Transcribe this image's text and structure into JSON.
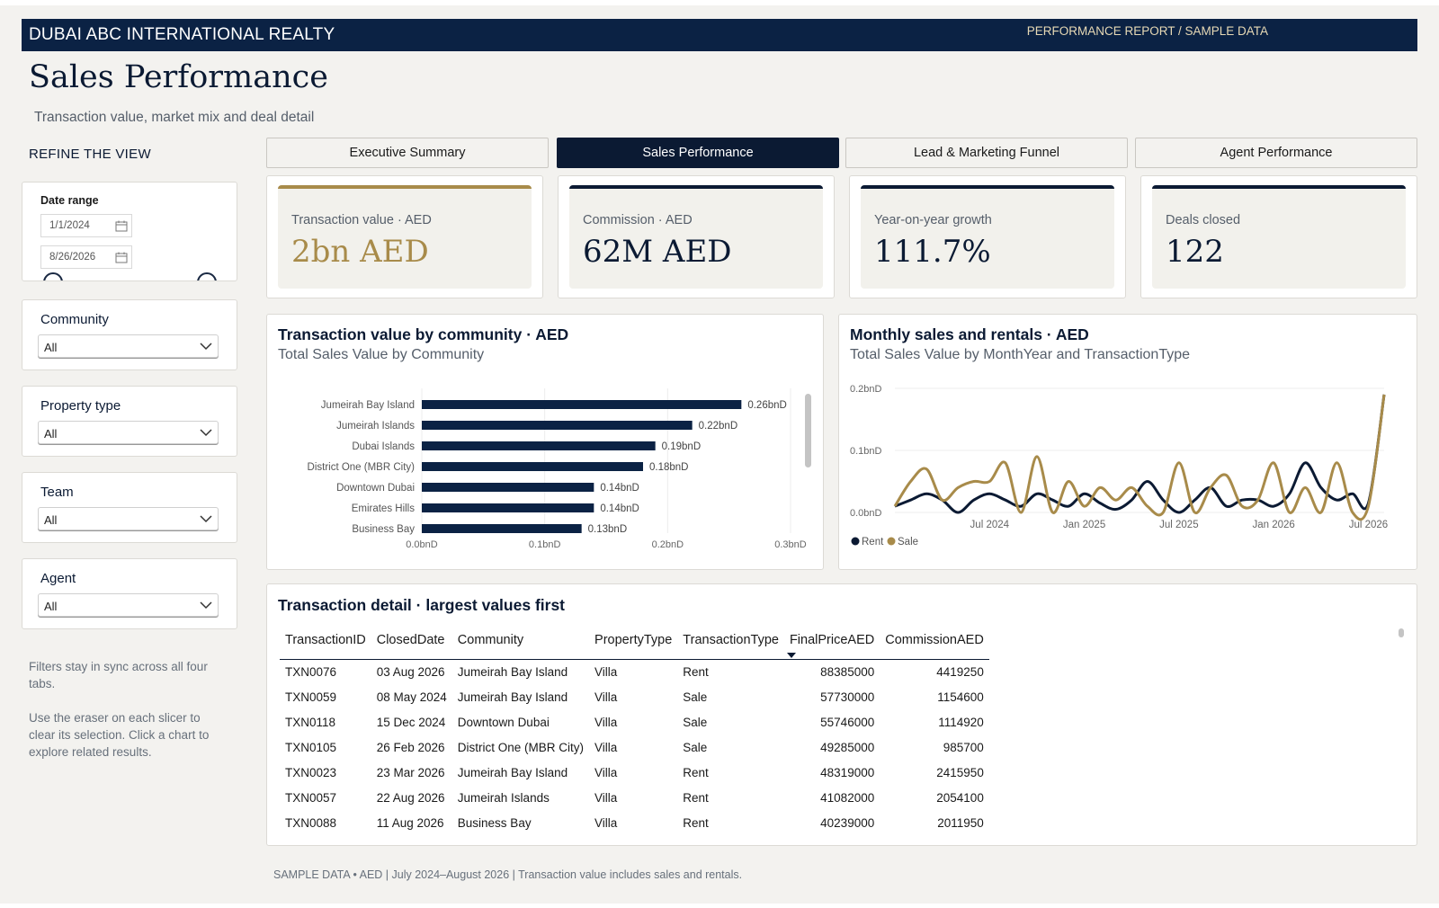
{
  "header": {
    "brand": "DUBAI ABC INTERNATIONAL REALTY",
    "crumb": "PERFORMANCE REPORT  /  SAMPLE DATA",
    "title": "Sales Performance",
    "subtitle": "Transaction value, market mix and deal detail"
  },
  "filters": {
    "heading": "REFINE THE VIEW",
    "date_range": {
      "label": "Date range",
      "start": "1/1/2024",
      "end": "8/26/2026"
    },
    "community": {
      "label": "Community",
      "value": "All"
    },
    "property_type": {
      "label": "Property type",
      "value": "All"
    },
    "team": {
      "label": "Team",
      "value": "All"
    },
    "agent": {
      "label": "Agent",
      "value": "All"
    },
    "note1": "Filters stay in sync across all four tabs.",
    "note2": "Use the eraser on each slicer to clear its selection. Click a chart to explore related results."
  },
  "tabs": [
    {
      "label": "Executive Summary",
      "active": false
    },
    {
      "label": "Sales Performance",
      "active": true
    },
    {
      "label": "Lead & Marketing Funnel",
      "active": false
    },
    {
      "label": "Agent Performance",
      "active": false
    }
  ],
  "kpis": [
    {
      "label": "Transaction value · AED",
      "value": "2bn AED",
      "accent": "#a88b4a"
    },
    {
      "label": "Commission · AED",
      "value": "62M AED",
      "accent": "#0b1a33"
    },
    {
      "label": "Year-on-year growth",
      "value": "111.7%",
      "accent": "#0b1a33"
    },
    {
      "label": "Deals closed",
      "value": "122",
      "accent": "#0b1a33"
    }
  ],
  "bar_panel": {
    "title": "Transaction value by community · AED",
    "subtitle": "Total Sales Value by Community"
  },
  "line_panel": {
    "title": "Monthly sales and rentals · AED",
    "subtitle": "Total Sales Value by MonthYear and TransactionType"
  },
  "chart_data": [
    {
      "type": "bar",
      "orientation": "horizontal",
      "title": "Total Sales Value by Community",
      "categories": [
        "Jumeirah Bay Island",
        "Jumeirah Islands",
        "Dubai Islands",
        "District One (MBR City)",
        "Downtown Dubai",
        "Emirates Hills",
        "Business Bay"
      ],
      "values": [
        0.26,
        0.22,
        0.19,
        0.18,
        0.14,
        0.14,
        0.13
      ],
      "value_labels": [
        "0.26bnD",
        "0.22bnD",
        "0.19bnD",
        "0.18bnD",
        "0.14bnD",
        "0.14bnD",
        "0.13bnD"
      ],
      "xticks": [
        "0.0bnD",
        "0.1bnD",
        "0.2bnD",
        "0.3bnD"
      ],
      "xlim": [
        0,
        0.3
      ],
      "unit": "bn AED",
      "bar_color": "#0b2244",
      "grid": true
    },
    {
      "type": "line",
      "title": "Total Sales Value by MonthYear and TransactionType",
      "x": [
        "2024-01",
        "2024-02",
        "2024-03",
        "2024-04",
        "2024-05",
        "2024-06",
        "2024-07",
        "2024-08",
        "2024-09",
        "2024-10",
        "2024-11",
        "2024-12",
        "2025-01",
        "2025-02",
        "2025-03",
        "2025-04",
        "2025-05",
        "2025-06",
        "2025-07",
        "2025-08",
        "2025-09",
        "2025-10",
        "2025-11",
        "2025-12",
        "2026-01",
        "2026-02",
        "2026-03",
        "2026-04",
        "2026-05",
        "2026-06",
        "2026-07",
        "2026-08"
      ],
      "xticks": [
        "Jul 2024",
        "Jan 2025",
        "Jul 2025",
        "Jan 2026",
        "Jul 2026"
      ],
      "yticks": [
        "0.0bnD",
        "0.1bnD",
        "0.2bnD"
      ],
      "ylim": [
        0,
        0.2
      ],
      "series": [
        {
          "name": "Rent",
          "color": "#0b1a33",
          "values": [
            0.01,
            0.02,
            0.03,
            0.02,
            0.0,
            0.02,
            0.03,
            0.02,
            0.01,
            0.03,
            0.02,
            0.01,
            0.03,
            0.015,
            0.005,
            0.02,
            0.05,
            0.02,
            0.0,
            0.02,
            0.04,
            0.01,
            0.02,
            0.02,
            0.01,
            0.03,
            0.08,
            0.04,
            0.02,
            0.03,
            0.015,
            0.19
          ]
        },
        {
          "name": "Sale",
          "color": "#a88b4a",
          "values": [
            0.01,
            0.05,
            0.07,
            0.02,
            0.04,
            0.05,
            0.05,
            0.08,
            0.0,
            0.09,
            0.0,
            0.05,
            0.01,
            0.04,
            0.02,
            0.04,
            0.01,
            0.0,
            0.08,
            0.0,
            0.04,
            0.06,
            0.01,
            0.02,
            0.08,
            0.0,
            0.04,
            0.0,
            0.08,
            0.0,
            0.01,
            0.19
          ]
        }
      ],
      "legend": "bottom-left",
      "grid": true
    }
  ],
  "table": {
    "title": "Transaction detail · largest values first",
    "columns": [
      "TransactionID",
      "ClosedDate",
      "Community",
      "PropertyType",
      "TransactionType",
      "FinalPriceAED",
      "CommissionAED"
    ],
    "sorted_column": "FinalPriceAED",
    "rows": [
      [
        "TXN0076",
        "03 Aug 2026",
        "Jumeirah Bay Island",
        "Villa",
        "Rent",
        "88385000",
        "4419250"
      ],
      [
        "TXN0059",
        "08 May 2024",
        "Jumeirah Bay Island",
        "Villa",
        "Sale",
        "57730000",
        "1154600"
      ],
      [
        "TXN0118",
        "15 Dec 2024",
        "Downtown Dubai",
        "Villa",
        "Sale",
        "55746000",
        "1114920"
      ],
      [
        "TXN0105",
        "26 Feb 2026",
        "District One (MBR City)",
        "Villa",
        "Sale",
        "49285000",
        "985700"
      ],
      [
        "TXN0023",
        "23 Mar 2026",
        "Jumeirah Bay Island",
        "Villa",
        "Rent",
        "48319000",
        "2415950"
      ],
      [
        "TXN0057",
        "22 Aug 2026",
        "Jumeirah Islands",
        "Villa",
        "Rent",
        "41082000",
        "2054100"
      ],
      [
        "TXN0088",
        "11 Aug 2026",
        "Business Bay",
        "Villa",
        "Rent",
        "40239000",
        "2011950"
      ]
    ]
  },
  "footer": "SAMPLE DATA  •  AED  |  July 2024–August 2026  |  Transaction value includes sales and rentals."
}
